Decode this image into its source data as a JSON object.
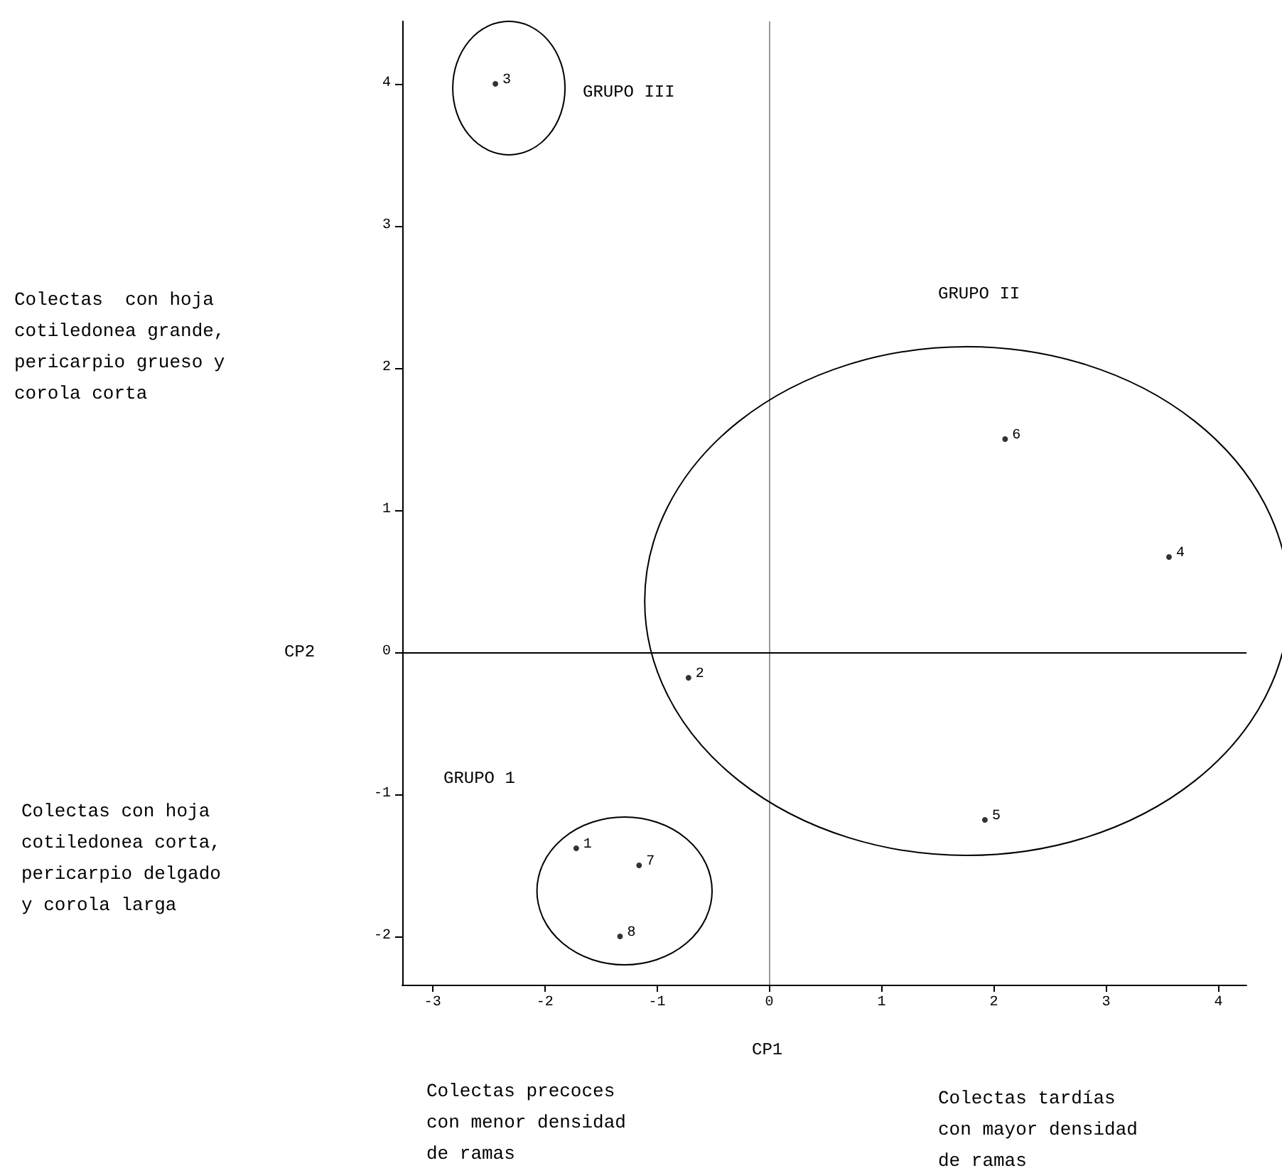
{
  "chart_data": {
    "type": "scatter",
    "xlabel": "CP1",
    "ylabel": "CP2",
    "x": [
      -1.72,
      -0.72,
      -2.44,
      3.56,
      1.92,
      2.1,
      -1.16,
      -1.33
    ],
    "values": [
      -1.38,
      -0.18,
      4.0,
      0.67,
      -1.18,
      1.5,
      -1.5,
      -2.0
    ],
    "color": "#000000",
    "marker": "circle",
    "xlim": [
      -3.27,
      4.25
    ],
    "ylim": [
      -2.34,
      4.44
    ],
    "xticks": [
      -3,
      -2,
      -1,
      0,
      1,
      2,
      3,
      4
    ],
    "yticks": [
      -2,
      -1,
      0,
      1,
      2,
      3,
      4
    ],
    "grid": false,
    "ref_lines": [
      {
        "axis": "x",
        "value": 0,
        "color": "#999999"
      },
      {
        "axis": "y",
        "value": 0,
        "color": "#000000"
      }
    ],
    "annotations": [
      {
        "text": "1",
        "x": -1.72,
        "y": -1.38
      },
      {
        "text": "2",
        "x": -0.72,
        "y": -0.18
      },
      {
        "text": "3",
        "x": -2.44,
        "y": 4.0
      },
      {
        "text": "4",
        "x": 3.56,
        "y": 0.67
      },
      {
        "text": "5",
        "x": 1.92,
        "y": -1.18
      },
      {
        "text": "6",
        "x": 2.1,
        "y": 1.5
      },
      {
        "text": "7",
        "x": -1.16,
        "y": -1.5
      },
      {
        "text": "8",
        "x": -1.33,
        "y": -2.0
      },
      "GRUPO III",
      "GRUPO II",
      "GRUPO 1",
      "Colectas  con hoja\ncotiledonea grande,\npericarpio grueso y\ncorola corta",
      "Colectas con hoja\ncotiledonea corta,\npericarpio delgado\ny corola larga",
      "Colectas precoces\ncon menor densidad\nde ramas",
      "Colectas tardías\ncon mayor densidad\nde ramas"
    ]
  }
}
